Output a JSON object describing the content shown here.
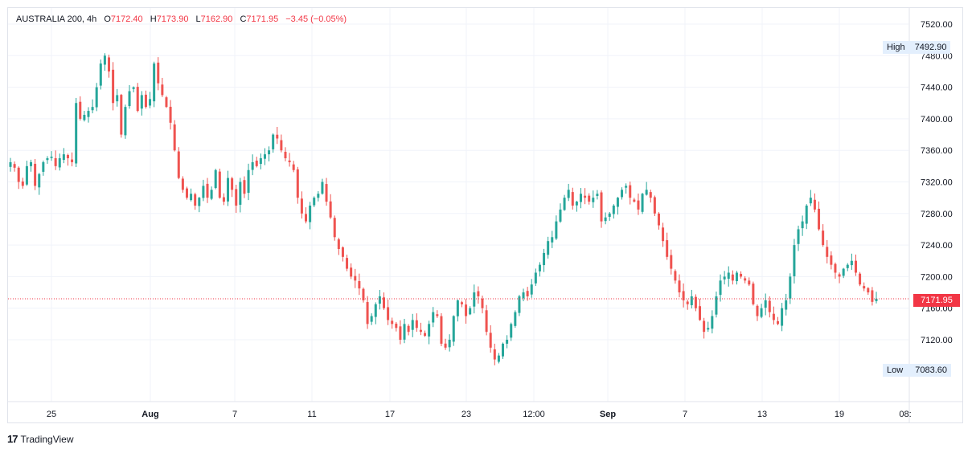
{
  "legend": {
    "symbol": "AUSTRALIA 200, 4h",
    "open_label": "O",
    "open": "7172.40",
    "high_label": "H",
    "high": "7173.90",
    "low_label": "L",
    "low": "7162.90",
    "close_label": "C",
    "close": "7171.95",
    "change": "−3.45 (−0.05%)"
  },
  "badges": {
    "high_label": "High",
    "high_value": "7492.90",
    "low_label": "Low",
    "low_value": "7083.60",
    "last_price": "7171.95"
  },
  "footer": {
    "brand": "TradingView",
    "logo": "17"
  },
  "colors": {
    "up": "#26a69a",
    "down": "#ef5350",
    "grid": "#f0f3fa",
    "text": "#131722",
    "last": "#f23645"
  },
  "chart_data": {
    "type": "candlestick",
    "title": "AUSTRALIA 200, 4h",
    "y_ticks": [
      7120,
      7160,
      7200,
      7240,
      7280,
      7320,
      7360,
      7400,
      7440,
      7480,
      7520
    ],
    "y_tick_labels": [
      "7120.00",
      "7160.00",
      "7200.00",
      "7240.00",
      "7280.00",
      "7320.00",
      "7360.00",
      "7400.00",
      "7440.00",
      "7480.00",
      "7520.00"
    ],
    "ylim": [
      7050,
      7540
    ],
    "x_labels": [
      "25",
      "Aug",
      "7",
      "11",
      "17",
      "23",
      "12:00",
      "Sep",
      "7",
      "13",
      "19",
      "08:"
    ],
    "x_bold": [
      "Aug",
      "Sep"
    ],
    "grid": true,
    "high": 7492.9,
    "low": 7083.6,
    "last": 7171.95,
    "close_path": [
      7345,
      7338,
      7320,
      7315,
      7340,
      7345,
      7315,
      7330,
      7345,
      7350,
      7352,
      7340,
      7350,
      7355,
      7350,
      7345,
      7420,
      7400,
      7405,
      7410,
      7415,
      7440,
      7470,
      7480,
      7460,
      7420,
      7430,
      7380,
      7415,
      7435,
      7440,
      7410,
      7430,
      7415,
      7425,
      7470,
      7445,
      7430,
      7415,
      7395,
      7360,
      7325,
      7310,
      7300,
      7305,
      7290,
      7300,
      7315,
      7300,
      7310,
      7335,
      7300,
      7295,
      7325,
      7310,
      7290,
      7320,
      7305,
      7335,
      7345,
      7340,
      7350,
      7355,
      7360,
      7380,
      7375,
      7360,
      7350,
      7345,
      7335,
      7300,
      7280,
      7270,
      7290,
      7300,
      7305,
      7320,
      7295,
      7275,
      7250,
      7235,
      7225,
      7210,
      7200,
      7195,
      7185,
      7170,
      7140,
      7150,
      7165,
      7175,
      7160,
      7145,
      7140,
      7135,
      7120,
      7140,
      7130,
      7145,
      7135,
      7130,
      7125,
      7140,
      7155,
      7150,
      7115,
      7110,
      7120,
      7150,
      7170,
      7165,
      7150,
      7160,
      7180,
      7175,
      7160,
      7130,
      7110,
      7095,
      7100,
      7115,
      7120,
      7140,
      7155,
      7175,
      7180,
      7175,
      7190,
      7205,
      7215,
      7230,
      7245,
      7250,
      7270,
      7285,
      7300,
      7310,
      7290,
      7295,
      7305,
      7300,
      7295,
      7300,
      7305,
      7270,
      7275,
      7280,
      7290,
      7300,
      7310,
      7315,
      7300,
      7295,
      7285,
      7305,
      7310,
      7300,
      7280,
      7265,
      7245,
      7225,
      7210,
      7195,
      7180,
      7170,
      7165,
      7175,
      7160,
      7145,
      7130,
      7135,
      7150,
      7175,
      7195,
      7200,
      7205,
      7195,
      7205,
      7200,
      7195,
      7190,
      7165,
      7150,
      7160,
      7170,
      7155,
      7145,
      7140,
      7160,
      7170,
      7200,
      7240,
      7260,
      7270,
      7290,
      7300,
      7285,
      7260,
      7240,
      7225,
      7215,
      7205,
      7200,
      7210,
      7215,
      7220,
      7205,
      7190,
      7185,
      7180,
      7168,
      7172
    ]
  }
}
